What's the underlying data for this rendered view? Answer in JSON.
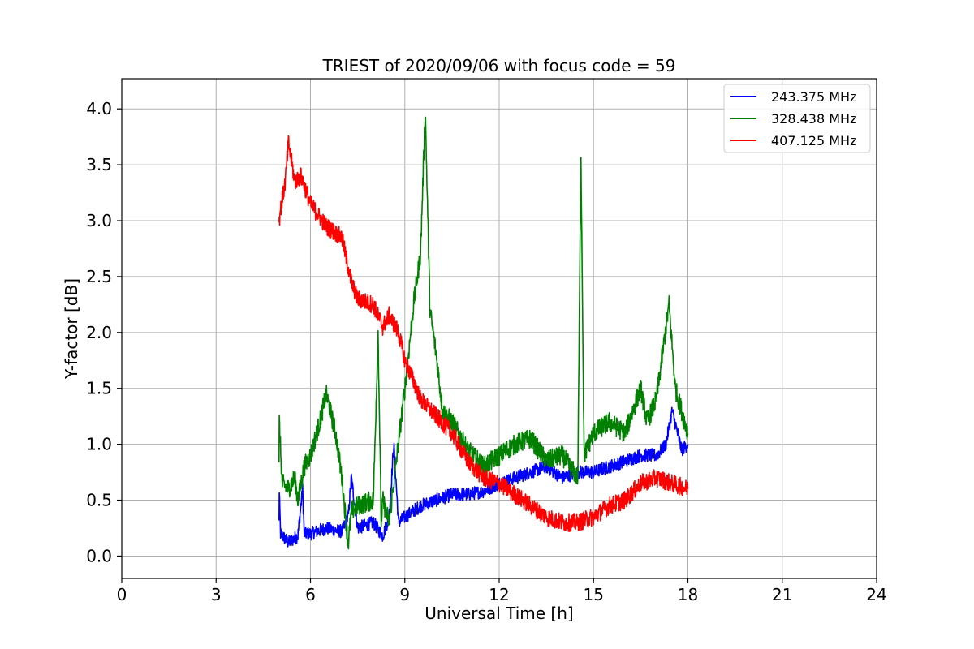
{
  "chart_data": {
    "type": "line",
    "title": "TRIEST of 2020/09/06 with focus code = 59",
    "xlabel": "Universal Time [h]",
    "ylabel": "Y-factor [dB]",
    "xlim": [
      0,
      24
    ],
    "ylim": [
      -0.2,
      4.27
    ],
    "x_ticks": [
      0,
      3,
      6,
      9,
      12,
      15,
      18,
      21,
      24
    ],
    "x_tick_labels": [
      "0",
      "3",
      "6",
      "9",
      "12",
      "15",
      "18",
      "21",
      "24"
    ],
    "y_ticks": [
      0.0,
      0.5,
      1.0,
      1.5,
      2.0,
      2.5,
      3.0,
      3.5,
      4.0
    ],
    "y_tick_labels": [
      "0.0",
      "0.5",
      "1.0",
      "1.5",
      "2.0",
      "2.5",
      "3.0",
      "3.5",
      "4.0"
    ],
    "grid": true,
    "legend_position": "top-right",
    "series": [
      {
        "name": "243.375 MHz",
        "color": "#0000ff",
        "x": [
          5.0,
          5.01,
          5.05,
          5.3,
          5.6,
          5.75,
          5.8,
          6.0,
          6.5,
          7.0,
          7.2,
          7.3,
          7.5,
          8.0,
          8.3,
          8.5,
          8.65,
          8.8,
          9.0,
          9.5,
          10.0,
          10.5,
          11.0,
          11.5,
          12.0,
          12.5,
          13.0,
          13.5,
          14.0,
          14.5,
          15.0,
          15.5,
          16.0,
          16.5,
          17.0,
          17.3,
          17.5,
          17.8,
          18.0
        ],
        "y": [
          0.3,
          0.55,
          0.2,
          0.12,
          0.18,
          0.6,
          0.2,
          0.2,
          0.25,
          0.22,
          0.35,
          0.7,
          0.25,
          0.3,
          0.18,
          0.35,
          1.0,
          0.3,
          0.35,
          0.45,
          0.5,
          0.55,
          0.55,
          0.58,
          0.65,
          0.7,
          0.75,
          0.8,
          0.7,
          0.75,
          0.75,
          0.8,
          0.85,
          0.9,
          0.9,
          1.0,
          1.3,
          0.95,
          1.0
        ]
      },
      {
        "name": "328.438 MHz",
        "color": "#008000",
        "x": [
          5.0,
          5.01,
          5.1,
          5.3,
          5.5,
          5.6,
          5.8,
          6.0,
          6.3,
          6.5,
          6.8,
          7.0,
          7.2,
          7.3,
          7.5,
          8.0,
          8.15,
          8.25,
          8.3,
          8.5,
          9.0,
          9.3,
          9.5,
          9.65,
          9.8,
          10.0,
          10.2,
          10.5,
          11.0,
          11.5,
          12.0,
          12.5,
          13.0,
          13.5,
          14.0,
          14.5,
          14.6,
          14.7,
          15.0,
          15.5,
          16.0,
          16.5,
          16.7,
          17.0,
          17.4,
          17.6,
          17.8,
          18.0
        ],
        "y": [
          0.8,
          1.2,
          0.65,
          0.6,
          0.7,
          0.5,
          0.8,
          0.9,
          1.2,
          1.45,
          1.1,
          0.7,
          0.1,
          0.4,
          0.45,
          0.5,
          2.0,
          0.3,
          0.5,
          0.3,
          1.5,
          2.3,
          2.7,
          4.0,
          2.2,
          1.8,
          1.3,
          1.2,
          0.95,
          0.8,
          0.9,
          1.0,
          1.05,
          0.85,
          0.9,
          0.7,
          3.6,
          0.9,
          1.1,
          1.2,
          1.1,
          1.5,
          1.2,
          1.4,
          2.25,
          1.5,
          1.3,
          1.1
        ]
      },
      {
        "name": "407.125 MHz",
        "color": "#ff0000",
        "x": [
          5.0,
          5.05,
          5.2,
          5.3,
          5.5,
          5.7,
          6.0,
          6.5,
          7.0,
          7.3,
          7.5,
          8.0,
          8.3,
          8.5,
          8.8,
          9.0,
          9.3,
          9.5,
          10.0,
          10.5,
          11.0,
          11.5,
          12.0,
          12.5,
          13.0,
          13.5,
          14.0,
          14.5,
          15.0,
          15.5,
          16.0,
          16.5,
          17.0,
          17.5,
          18.0
        ],
        "y": [
          3.0,
          3.1,
          3.35,
          3.7,
          3.35,
          3.4,
          3.15,
          2.95,
          2.85,
          2.45,
          2.3,
          2.25,
          2.05,
          2.15,
          2.0,
          1.75,
          1.55,
          1.4,
          1.25,
          1.1,
          0.85,
          0.7,
          0.65,
          0.55,
          0.45,
          0.35,
          0.3,
          0.3,
          0.35,
          0.45,
          0.5,
          0.65,
          0.7,
          0.65,
          0.6
        ]
      }
    ]
  }
}
